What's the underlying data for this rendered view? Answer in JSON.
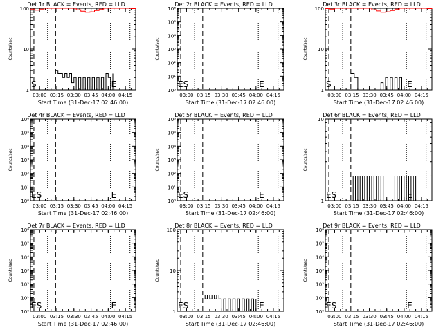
{
  "chart_data": [
    {
      "type": "line",
      "title": "Det 1r BLACK = Events, RED = LLD",
      "xlabel": "Start Time (31-Dec-17 02:46:00)",
      "ylabel": "Counts/sec",
      "xlim": [
        "02:52",
        "04:24"
      ],
      "ylim": [
        1,
        100
      ],
      "yscale": "log",
      "xticks": [
        "03:00",
        "03:15",
        "03:30",
        "03:45",
        "04:00",
        "04:15"
      ],
      "yticks": [
        "1",
        "10",
        "100"
      ],
      "markers": [
        {
          "time": "02:55",
          "style": "dashed",
          "label": "S"
        },
        {
          "time": "03:14",
          "style": "dashed",
          "label": ""
        },
        {
          "time": "03:07",
          "style": "dotted"
        },
        {
          "time": "04:02",
          "style": "dotted",
          "label": "E"
        },
        {
          "time": "04:19",
          "style": "dotted"
        }
      ],
      "series": [
        {
          "color": "#000000",
          "x": [
            "03:14",
            "03:16",
            "03:18",
            "03:20",
            "03:22",
            "03:24",
            "03:26",
            "03:28",
            "03:30",
            "03:32",
            "03:34",
            "03:36",
            "03:38",
            "03:40",
            "03:42",
            "03:44",
            "03:46",
            "03:48",
            "03:50",
            "03:52",
            "03:54",
            "03:56",
            "03:58",
            "04:00",
            "04:02",
            "04:04"
          ],
          "y": [
            3,
            2.5,
            2.5,
            2,
            2.5,
            2,
            2.5,
            1.5,
            2,
            1,
            2,
            1,
            2,
            1,
            2,
            1,
            2,
            1,
            2,
            1,
            2,
            1,
            2.5,
            2,
            1,
            2.5
          ]
        },
        {
          "color": "#ff0000",
          "x": [
            "02:52",
            "02:56",
            "03:00",
            "03:04",
            "03:08",
            "03:12",
            "03:16",
            "03:20",
            "03:24",
            "03:28",
            "03:32",
            "03:36",
            "03:40",
            "03:44",
            "03:48",
            "03:52",
            "03:56",
            "04:00",
            "04:04",
            "04:08",
            "04:12",
            "04:16",
            "04:20",
            "04:24"
          ],
          "y": [
            95,
            90,
            95,
            100,
            100,
            100,
            100,
            100,
            100,
            100,
            92,
            85,
            80,
            82,
            88,
            95,
            100,
            100,
            100,
            100,
            100,
            100,
            98,
            100
          ]
        }
      ]
    },
    {
      "type": "line",
      "title": "Det 2r BLACK = Events, RED = LLD",
      "xlabel": "Start Time (31-Dec-17 02:46:00)",
      "ylabel": "Counts/sec",
      "xlim": [
        "02:52",
        "04:24"
      ],
      "ylim": [
        1,
        1000000
      ],
      "yscale": "log",
      "xticks": [
        "03:00",
        "03:15",
        "03:30",
        "03:45",
        "04:00",
        "04:15"
      ],
      "yticks": [
        "10⁰",
        "10¹",
        "10²",
        "10³",
        "10⁴",
        "10⁵",
        "10⁶"
      ],
      "markers": [
        {
          "time": "02:55",
          "style": "dashed",
          "label": "ES"
        },
        {
          "time": "03:14",
          "style": "dashed",
          "label": ""
        },
        {
          "time": "03:07",
          "style": "dotted"
        },
        {
          "time": "04:02",
          "style": "dotted",
          "label": "E"
        },
        {
          "time": "04:19",
          "style": "dotted"
        }
      ],
      "series": []
    },
    {
      "type": "line",
      "title": "Det 3r BLACK = Events, RED = LLD",
      "xlabel": "Start Time (31-Dec-17 02:46:00)",
      "ylabel": "Counts/sec",
      "xlim": [
        "02:52",
        "04:24"
      ],
      "ylim": [
        1,
        100
      ],
      "yscale": "log",
      "xticks": [
        "03:00",
        "03:15",
        "03:30",
        "03:45",
        "04:00",
        "04:15"
      ],
      "yticks": [
        "1",
        "10",
        "100"
      ],
      "markers": [
        {
          "time": "02:55",
          "style": "dashed",
          "label": "S"
        },
        {
          "time": "03:14",
          "style": "dashed",
          "label": ""
        },
        {
          "time": "03:07",
          "style": "dotted"
        },
        {
          "time": "04:02",
          "style": "dotted",
          "label": "E"
        },
        {
          "time": "04:19",
          "style": "dotted"
        }
      ],
      "series": [
        {
          "color": "#000000",
          "x": [
            "03:14",
            "03:17",
            "03:20",
            "03:30",
            "03:33",
            "03:36",
            "03:40",
            "03:42",
            "03:44",
            "03:46",
            "03:48",
            "03:50",
            "03:52",
            "03:54",
            "03:56",
            "03:58",
            "04:00"
          ],
          "y": [
            2.5,
            2,
            1,
            1,
            1,
            1,
            1.5,
            1,
            2,
            1,
            2,
            1,
            2,
            1,
            2,
            1,
            1
          ]
        },
        {
          "color": "#ff0000",
          "x": [
            "02:52",
            "02:56",
            "03:00",
            "03:04",
            "03:08",
            "03:12",
            "03:16",
            "03:20",
            "03:24",
            "03:28",
            "03:32",
            "03:36",
            "03:40",
            "03:44",
            "03:48",
            "03:52",
            "03:56",
            "04:00",
            "04:04",
            "04:08",
            "04:12",
            "04:16",
            "04:20",
            "04:24"
          ],
          "y": [
            98,
            95,
            100,
            100,
            100,
            100,
            100,
            100,
            100,
            100,
            92,
            86,
            80,
            82,
            88,
            95,
            100,
            100,
            100,
            100,
            100,
            100,
            98,
            100
          ]
        }
      ]
    },
    {
      "type": "line",
      "title": "Det 4r BLACK = Events, RED = LLD",
      "xlabel": "Start Time (31-Dec-17 02:46:00)",
      "ylabel": "Counts/sec",
      "xlim": [
        "02:52",
        "04:24"
      ],
      "ylim": [
        1,
        1000000
      ],
      "yscale": "log",
      "xticks": [
        "03:00",
        "03:15",
        "03:30",
        "03:45",
        "04:00",
        "04:15"
      ],
      "yticks": [
        "10⁰",
        "10¹",
        "10²",
        "10³",
        "10⁴",
        "10⁵",
        "10⁶"
      ],
      "markers": [
        {
          "time": "02:55",
          "style": "dashed",
          "label": "ES"
        },
        {
          "time": "03:14",
          "style": "dashed",
          "label": ""
        },
        {
          "time": "03:07",
          "style": "dotted"
        },
        {
          "time": "04:02",
          "style": "dotted",
          "label": "E"
        },
        {
          "time": "04:19",
          "style": "dotted"
        }
      ],
      "series": []
    },
    {
      "type": "line",
      "title": "Det 5r BLACK = Events, RED = LLD",
      "xlabel": "Start Time (31-Dec-17 02:46:00)",
      "ylabel": "Counts/sec",
      "xlim": [
        "02:52",
        "04:24"
      ],
      "ylim": [
        1,
        1000000
      ],
      "yscale": "log",
      "xticks": [
        "03:00",
        "03:15",
        "03:30",
        "03:45",
        "04:00",
        "04:15"
      ],
      "yticks": [
        "10⁰",
        "10¹",
        "10²",
        "10³",
        "10⁴",
        "10⁵",
        "10⁶"
      ],
      "markers": [
        {
          "time": "02:55",
          "style": "dashed",
          "label": "ES"
        },
        {
          "time": "03:14",
          "style": "dashed",
          "label": ""
        },
        {
          "time": "03:07",
          "style": "dotted"
        },
        {
          "time": "04:02",
          "style": "dotted",
          "label": "E"
        },
        {
          "time": "04:19",
          "style": "dotted"
        }
      ],
      "series": []
    },
    {
      "type": "line",
      "title": "Det 6r BLACK = Events, RED = LLD",
      "xlabel": "Start Time (31-Dec-17 02:46:00)",
      "ylabel": "Counts/sec",
      "xlim": [
        "02:52",
        "04:24"
      ],
      "ylim": [
        1,
        10
      ],
      "yscale": "log",
      "xticks": [
        "03:00",
        "03:15",
        "03:30",
        "03:45",
        "04:00",
        "04:15"
      ],
      "yticks": [
        "1",
        "10"
      ],
      "markers": [
        {
          "time": "02:55",
          "style": "dashed",
          "label": "ES"
        },
        {
          "time": "03:14",
          "style": "dashed",
          "label": ""
        },
        {
          "time": "03:07",
          "style": "dotted"
        },
        {
          "time": "04:02",
          "style": "dotted",
          "label": "E"
        },
        {
          "time": "04:19",
          "style": "dotted"
        }
      ],
      "series": [
        {
          "color": "#000000",
          "x": [
            "03:14",
            "03:16",
            "03:18",
            "03:20",
            "03:22",
            "03:24",
            "03:26",
            "03:28",
            "03:30",
            "03:32",
            "03:34",
            "03:36",
            "03:38",
            "03:40",
            "03:42",
            "03:50",
            "03:52",
            "03:54",
            "03:56",
            "03:58",
            "04:00",
            "04:02",
            "04:04",
            "04:06",
            "04:08",
            "04:10"
          ],
          "y": [
            2,
            1,
            2,
            1,
            2,
            1,
            2,
            1,
            2,
            1,
            2,
            1,
            2,
            1,
            2,
            2,
            1,
            2,
            1,
            2,
            1,
            2,
            1,
            2,
            1,
            2
          ]
        }
      ]
    },
    {
      "type": "line",
      "title": "Det 7r BLACK = Events, RED = LLD",
      "xlabel": "Start Time (31-Dec-17 02:46:00)",
      "ylabel": "Counts/sec",
      "xlim": [
        "02:52",
        "04:24"
      ],
      "ylim": [
        1,
        1000000
      ],
      "yscale": "log",
      "xticks": [
        "03:00",
        "03:15",
        "03:30",
        "03:45",
        "04:00",
        "04:15"
      ],
      "yticks": [
        "10⁰",
        "10¹",
        "10²",
        "10³",
        "10⁴",
        "10⁵",
        "10⁶"
      ],
      "markers": [
        {
          "time": "02:55",
          "style": "dashed",
          "label": "ES"
        },
        {
          "time": "03:14",
          "style": "dashed",
          "label": ""
        },
        {
          "time": "03:07",
          "style": "dotted"
        },
        {
          "time": "04:02",
          "style": "dotted",
          "label": "E"
        },
        {
          "time": "04:19",
          "style": "dotted"
        }
      ],
      "series": []
    },
    {
      "type": "line",
      "title": "Det 8r BLACK = Events, RED = LLD",
      "xlabel": "Start Time (31-Dec-17 02:46:00)",
      "ylabel": "Counts/sec",
      "xlim": [
        "02:52",
        "04:24"
      ],
      "ylim": [
        1,
        100
      ],
      "yscale": "log",
      "xticks": [
        "03:00",
        "03:15",
        "03:30",
        "03:45",
        "04:00",
        "04:15"
      ],
      "yticks": [
        "1",
        "10",
        "100"
      ],
      "markers": [
        {
          "time": "02:55",
          "style": "dashed",
          "label": "ES"
        },
        {
          "time": "03:14",
          "style": "dashed",
          "label": ""
        },
        {
          "time": "03:07",
          "style": "dotted"
        },
        {
          "time": "04:02",
          "style": "dotted",
          "label": "E"
        },
        {
          "time": "04:19",
          "style": "dotted"
        }
      ],
      "series": [
        {
          "color": "#000000",
          "x": [
            "03:14",
            "03:16",
            "03:18",
            "03:20",
            "03:22",
            "03:24",
            "03:26",
            "03:28",
            "03:30",
            "03:32",
            "03:34",
            "03:36",
            "03:38",
            "03:40",
            "03:42",
            "03:44",
            "03:46",
            "03:48",
            "03:50",
            "03:52",
            "03:54",
            "03:56",
            "03:58",
            "04:00"
          ],
          "y": [
            2.5,
            2,
            2.5,
            2,
            2.5,
            2,
            2.5,
            2,
            1,
            2,
            1,
            2,
            1,
            2,
            1,
            2,
            1,
            2,
            1,
            2,
            1,
            2,
            1,
            2
          ]
        }
      ]
    },
    {
      "type": "line",
      "title": "Det 9r BLACK = Events, RED = LLD",
      "xlabel": "Start Time (31-Dec-17 02:46:00)",
      "ylabel": "Counts/sec",
      "xlim": [
        "02:52",
        "04:24"
      ],
      "ylim": [
        1,
        1000000
      ],
      "yscale": "log",
      "xticks": [
        "03:00",
        "03:15",
        "03:30",
        "03:45",
        "04:00",
        "04:15"
      ],
      "yticks": [
        "10⁰",
        "10¹",
        "10²",
        "10³",
        "10⁴",
        "10⁵",
        "10⁶"
      ],
      "markers": [
        {
          "time": "02:55",
          "style": "dashed",
          "label": "ES"
        },
        {
          "time": "03:14",
          "style": "dashed",
          "label": ""
        },
        {
          "time": "03:07",
          "style": "dotted"
        },
        {
          "time": "04:02",
          "style": "dotted",
          "label": "E"
        },
        {
          "time": "04:19",
          "style": "dotted"
        }
      ],
      "series": []
    }
  ]
}
